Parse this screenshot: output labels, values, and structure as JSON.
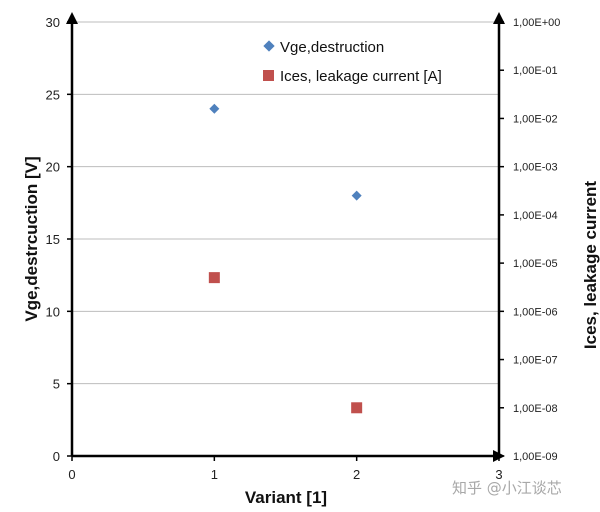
{
  "chart_data": {
    "type": "scatter",
    "xlabel": "Variant [1]",
    "ylabel_left": "Vge,destrcuction [V]",
    "ylabel_right": "Ices, leakage current",
    "xlim": [
      0,
      3
    ],
    "x_ticks": [
      "0",
      "1",
      "2",
      "3"
    ],
    "y_left_lim": [
      0,
      30
    ],
    "y_left_ticks": [
      "0",
      "5",
      "10",
      "15",
      "20",
      "25",
      "30"
    ],
    "y_right_lim_log10": [
      -9,
      0
    ],
    "y_right_ticks": [
      "1,00E-09",
      "1,00E-08",
      "1,00E-07",
      "1,00E-06",
      "1,00E-05",
      "1,00E-04",
      "1,00E-03",
      "1,00E-02",
      "1,00E-01",
      "1,00E+00"
    ],
    "grid": "horizontal",
    "legend_position": "top-right",
    "series": [
      {
        "name": "Vge,destruction",
        "axis": "left",
        "marker": "diamond",
        "color": "#4f81bd",
        "points": [
          {
            "x": 1,
            "y": 24
          },
          {
            "x": 2,
            "y": 18
          }
        ]
      },
      {
        "name": "Ices, leakage current [A]",
        "axis": "right",
        "marker": "square",
        "color": "#c0504d",
        "points": [
          {
            "x": 1,
            "y": 5e-06
          },
          {
            "x": 2,
            "y": 1e-08
          }
        ]
      }
    ]
  },
  "watermark": "知乎 @小江谈芯"
}
